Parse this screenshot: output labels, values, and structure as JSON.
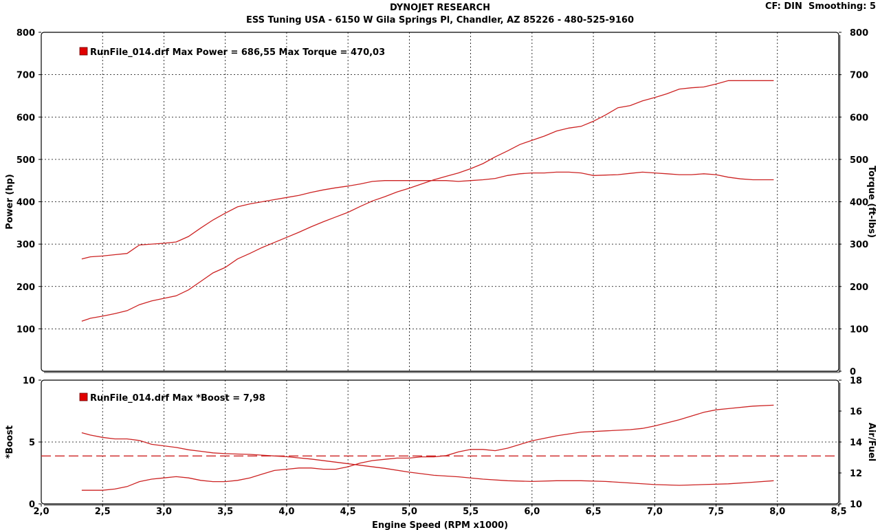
{
  "header": {
    "title": "DYNOJET RESEARCH",
    "subtitle": "ESS Tuning USA - 6150 W Gila Springs Pl, Chandler, AZ 85226 - 480-525-9160",
    "cf": "CF: DIN",
    "smoothing": "Smoothing: 5"
  },
  "colors": {
    "series": "#cc2222",
    "legend_box": "#e00000",
    "grid": "#000000"
  },
  "chart_data": [
    {
      "type": "line",
      "title": "",
      "legend": "RunFile_014.drf Max Power = 686,55     Max Torque = 470,03",
      "xlabel": "",
      "ylabel": "Power (hp)",
      "y2label": "Torque (ft-lbs)",
      "xlim": [
        2.0,
        8.5
      ],
      "ylim": [
        0,
        800
      ],
      "y2lim": [
        0,
        800
      ],
      "yticks": [
        "100",
        "200",
        "300",
        "400",
        "500",
        "600",
        "700",
        "800"
      ],
      "y2ticks": [
        "0",
        "100",
        "200",
        "300",
        "400",
        "500",
        "600",
        "700",
        "800"
      ],
      "series": [
        {
          "name": "Power",
          "axis": "left",
          "x": [
            2.33,
            2.4,
            2.5,
            2.6,
            2.7,
            2.8,
            2.9,
            3.0,
            3.1,
            3.2,
            3.3,
            3.4,
            3.5,
            3.6,
            3.7,
            3.8,
            3.9,
            4.0,
            4.1,
            4.2,
            4.3,
            4.4,
            4.5,
            4.6,
            4.7,
            4.8,
            4.9,
            5.0,
            5.1,
            5.2,
            5.3,
            5.4,
            5.5,
            5.6,
            5.7,
            5.8,
            5.9,
            6.0,
            6.1,
            6.2,
            6.3,
            6.4,
            6.5,
            6.6,
            6.7,
            6.8,
            6.9,
            7.0,
            7.1,
            7.2,
            7.3,
            7.4,
            7.5,
            7.6,
            7.7,
            7.8,
            7.9,
            7.97
          ],
          "values": [
            118,
            125,
            130,
            136,
            143,
            157,
            166,
            172,
            178,
            192,
            212,
            232,
            245,
            265,
            278,
            292,
            304,
            316,
            328,
            341,
            353,
            364,
            375,
            389,
            402,
            412,
            423,
            432,
            442,
            452,
            460,
            468,
            478,
            490,
            506,
            520,
            535,
            545,
            555,
            567,
            574,
            578,
            590,
            605,
            622,
            627,
            638,
            646,
            655,
            666,
            669,
            671,
            678,
            686,
            686,
            686,
            686,
            686
          ]
        },
        {
          "name": "Torque",
          "axis": "right",
          "x": [
            2.33,
            2.4,
            2.5,
            2.6,
            2.7,
            2.8,
            2.9,
            3.0,
            3.1,
            3.2,
            3.3,
            3.4,
            3.5,
            3.6,
            3.7,
            3.8,
            3.9,
            4.0,
            4.1,
            4.2,
            4.3,
            4.4,
            4.5,
            4.6,
            4.7,
            4.8,
            4.9,
            5.0,
            5.1,
            5.2,
            5.3,
            5.4,
            5.5,
            5.6,
            5.7,
            5.8,
            5.9,
            6.0,
            6.1,
            6.2,
            6.3,
            6.4,
            6.5,
            6.6,
            6.7,
            6.8,
            6.9,
            7.0,
            7.1,
            7.2,
            7.3,
            7.4,
            7.5,
            7.6,
            7.7,
            7.8,
            7.9,
            7.97
          ],
          "values": [
            265,
            270,
            272,
            275,
            278,
            298,
            300,
            302,
            305,
            318,
            338,
            357,
            373,
            388,
            395,
            400,
            405,
            410,
            415,
            422,
            428,
            433,
            437,
            442,
            448,
            450,
            450,
            450,
            450,
            450,
            450,
            448,
            450,
            452,
            455,
            462,
            466,
            468,
            468,
            470,
            470,
            468,
            462,
            463,
            464,
            467,
            470,
            468,
            466,
            464,
            464,
            466,
            464,
            458,
            454,
            452,
            452,
            452
          ]
        }
      ]
    },
    {
      "type": "line",
      "title": "",
      "legend": "RunFile_014.drf Max *Boost = 7,98",
      "xlabel": "Engine Speed (RPM x1000)",
      "ylabel": "*Boost",
      "y2label": "Air/Fuel",
      "xlim": [
        2.0,
        8.5
      ],
      "xticks": [
        "2,0",
        "2,5",
        "3,0",
        "3,5",
        "4,0",
        "4,5",
        "5,0",
        "5,5",
        "6,0",
        "6,5",
        "7,0",
        "7,5",
        "8,0",
        "8,5"
      ],
      "ylim": [
        0,
        10
      ],
      "yticks": [
        "0",
        "5",
        "10"
      ],
      "y2lim": [
        10,
        18
      ],
      "y2ticks": [
        "10",
        "12",
        "14",
        "16",
        "18"
      ],
      "series": [
        {
          "name": "*Boost",
          "axis": "left",
          "x": [
            2.33,
            2.5,
            2.6,
            2.7,
            2.8,
            2.9,
            3.0,
            3.1,
            3.2,
            3.3,
            3.4,
            3.5,
            3.6,
            3.7,
            3.8,
            3.9,
            4.0,
            4.1,
            4.2,
            4.3,
            4.4,
            4.5,
            4.6,
            4.7,
            4.8,
            4.9,
            5.0,
            5.1,
            5.2,
            5.3,
            5.4,
            5.5,
            5.6,
            5.7,
            5.8,
            5.9,
            6.0,
            6.2,
            6.4,
            6.6,
            6.8,
            6.9,
            7.0,
            7.2,
            7.4,
            7.5,
            7.6,
            7.8,
            7.97
          ],
          "values": [
            1.1,
            1.1,
            1.2,
            1.4,
            1.8,
            2.0,
            2.1,
            2.2,
            2.1,
            1.9,
            1.8,
            1.8,
            1.9,
            2.1,
            2.4,
            2.7,
            2.8,
            2.9,
            2.9,
            2.8,
            2.8,
            3.0,
            3.3,
            3.5,
            3.6,
            3.7,
            3.7,
            3.8,
            3.8,
            3.9,
            4.2,
            4.4,
            4.4,
            4.3,
            4.5,
            4.8,
            5.1,
            5.5,
            5.8,
            5.9,
            6.0,
            6.1,
            6.3,
            6.8,
            7.4,
            7.6,
            7.7,
            7.9,
            7.98
          ]
        },
        {
          "name": "Air/Fuel",
          "axis": "right",
          "x": [
            2.33,
            2.4,
            2.5,
            2.6,
            2.7,
            2.8,
            2.9,
            3.0,
            3.1,
            3.2,
            3.3,
            3.4,
            3.5,
            3.6,
            3.7,
            3.8,
            3.9,
            4.0,
            4.2,
            4.4,
            4.6,
            4.8,
            5.0,
            5.2,
            5.4,
            5.6,
            5.8,
            6.0,
            6.2,
            6.4,
            6.6,
            6.8,
            7.0,
            7.2,
            7.4,
            7.6,
            7.8,
            7.97
          ],
          "values": [
            14.6,
            14.45,
            14.3,
            14.2,
            14.2,
            14.1,
            13.85,
            13.75,
            13.65,
            13.5,
            13.4,
            13.3,
            13.25,
            13.22,
            13.2,
            13.15,
            13.1,
            13.05,
            12.9,
            12.7,
            12.5,
            12.3,
            12.05,
            11.85,
            11.75,
            11.6,
            11.5,
            11.45,
            11.5,
            11.5,
            11.45,
            11.35,
            11.25,
            11.2,
            11.25,
            11.3,
            11.4,
            11.5
          ]
        },
        {
          "name": "Target Air/Fuel",
          "axis": "right",
          "x": [
            2.0,
            8.5
          ],
          "values": [
            13.1,
            13.1
          ]
        }
      ]
    }
  ]
}
